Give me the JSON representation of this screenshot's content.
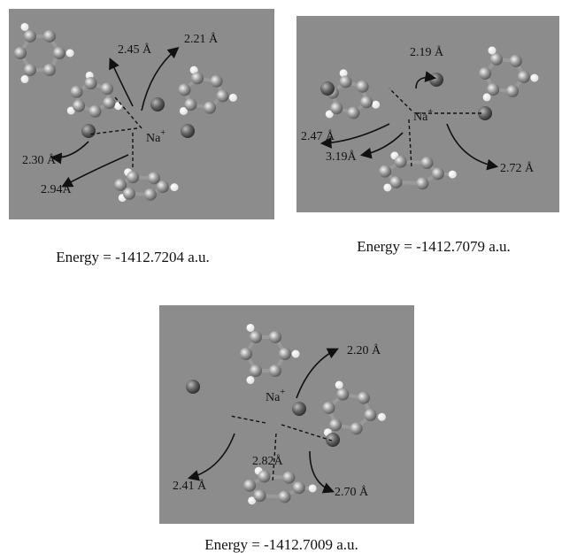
{
  "panels": [
    {
      "distances": [
        "2.45 Å",
        "2.21 Å",
        "2.30 Å",
        "2.94Å"
      ],
      "ion": "Na",
      "charge": "+",
      "energy": "Energy = -1412.7204 a.u."
    },
    {
      "distances": [
        "2.19 Å",
        "2.47 Å",
        "3.19Å",
        "2.72 Å"
      ],
      "ion": "Na",
      "charge": "+",
      "energy": "Energy = -1412.7079 a.u."
    },
    {
      "distances": [
        "2.20 Å",
        "2.82Å",
        "2.41 Å",
        "2.70 Å"
      ],
      "ion": "Na",
      "charge": "+",
      "energy": "Energy = -1412.7009 a.u."
    }
  ]
}
